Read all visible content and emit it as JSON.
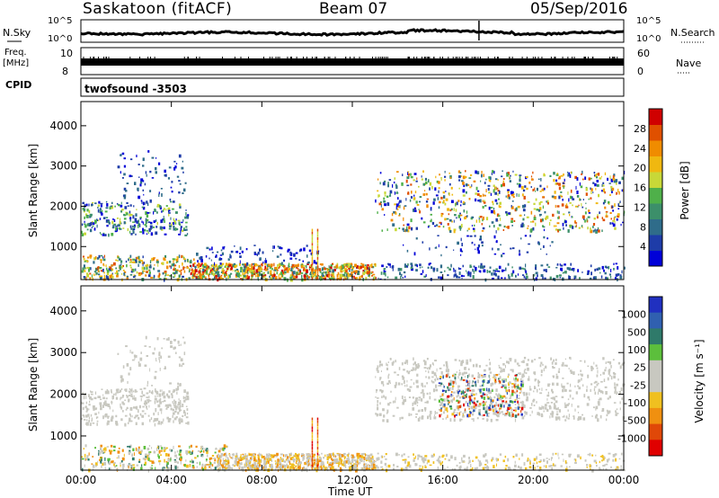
{
  "header": {
    "station": "Saskatoon (fitACF)",
    "beam": "Beam 07",
    "date": "05/Sep/2016"
  },
  "top_panels": {
    "nsky_label": "N.Sky",
    "nsky_ticks": [
      "10^5",
      "10^0"
    ],
    "nsearch_label": "N.Search",
    "nsearch_ticks": [
      "10^5",
      "10^0"
    ],
    "freq_label_1": "Freq.",
    "freq_label_2": "[MHz]",
    "freq_ticks": [
      "10",
      "8"
    ],
    "nave_label": "Nave",
    "nave_ticks": [
      "60",
      "0"
    ],
    "cpid_label": "CPID",
    "cpid_text": "twofsound  -3503"
  },
  "colors": {
    "power": [
      "#0000d8",
      "#1e3ca8",
      "#2f6c8a",
      "#3c8f6a",
      "#4fb04a",
      "#c8d838",
      "#f0b810",
      "#f08c00",
      "#e05000",
      "#d00000"
    ],
    "velocity": [
      "#2030c0",
      "#3060b0",
      "#2f7a6a",
      "#5cbf3c",
      "#c8c8c0",
      "#c8c8c0",
      "#f0c020",
      "#f09010",
      "#e04808",
      "#e00000"
    ],
    "ground": "#c8c8c0"
  },
  "chart_data": [
    {
      "type": "heatmap",
      "name": "power",
      "ylabel": "Slant Range [km]",
      "ylim": [
        180,
        4600
      ],
      "yticks": [
        "1000",
        "2000",
        "3000",
        "4000"
      ],
      "xlim_hours": [
        0,
        24
      ],
      "colorbar_label": "Power [dB]",
      "colorbar_ticks": [
        "4",
        "8",
        "12",
        "16",
        "20",
        "24",
        "28"
      ],
      "echo_regions": [
        {
          "t": [
            0.0,
            4.8
          ],
          "range_km": [
            1300,
            2200
          ],
          "value": "8-16 dB"
        },
        {
          "t": [
            0.0,
            4.8
          ],
          "range_km": [
            180,
            800
          ],
          "value": "8-24 dB"
        },
        {
          "t": [
            4.8,
            13.0
          ],
          "range_km": [
            180,
            600
          ],
          "value": "16-28 dB"
        },
        {
          "t": [
            13.0,
            24.0
          ],
          "range_km": [
            1400,
            2800
          ],
          "value": "8-20 dB"
        },
        {
          "t": [
            13.0,
            24.0
          ],
          "range_km": [
            180,
            600
          ],
          "value": "4-12 dB"
        }
      ]
    },
    {
      "type": "heatmap",
      "name": "velocity",
      "ylabel": "Slant Range [km]",
      "ylim": [
        180,
        4600
      ],
      "yticks": [
        "1000",
        "2000",
        "3000",
        "4000"
      ],
      "xlabel": "Time UT",
      "xticks": [
        "00:00",
        "04:00",
        "08:00",
        "12:00",
        "16:00",
        "20:00",
        "00:00"
      ],
      "colorbar_label": "Velocity [m s⁻¹]",
      "colorbar_ticks": [
        "1000",
        "500",
        "100",
        "25",
        "-25",
        "-100",
        "-500",
        "-1000"
      ],
      "echo_regions": [
        {
          "t": [
            0.0,
            4.8
          ],
          "range_km": [
            1300,
            2200
          ],
          "value": "ground scatter"
        },
        {
          "t": [
            0.0,
            6.0
          ],
          "range_km": [
            180,
            800
          ],
          "value": "-100 to 100 m/s"
        },
        {
          "t": [
            8.0,
            13.0
          ],
          "range_km": [
            180,
            600
          ],
          "value": "-100 to 25 m/s"
        },
        {
          "t": [
            16.0,
            19.5
          ],
          "range_km": [
            1500,
            2500
          ],
          "value": "-500 to 1000 m/s"
        },
        {
          "t": [
            13.0,
            24.0
          ],
          "range_km": [
            1400,
            2800
          ],
          "value": "ground scatter"
        }
      ]
    }
  ]
}
